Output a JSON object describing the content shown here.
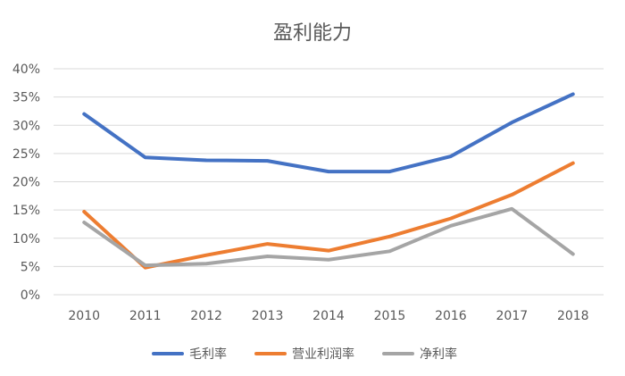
{
  "chart_data": {
    "type": "line",
    "title": "盈利能力",
    "categories": [
      "2010",
      "2011",
      "2012",
      "2013",
      "2014",
      "2015",
      "2016",
      "2017",
      "2018"
    ],
    "series": [
      {
        "name": "毛利率",
        "color": "#4472C4",
        "values": [
          32,
          24.3,
          23.8,
          23.7,
          21.8,
          21.8,
          24.5,
          30.5,
          35.5
        ]
      },
      {
        "name": "营业利润率",
        "color": "#ED7D31",
        "values": [
          14.7,
          4.8,
          7,
          9,
          7.8,
          10.3,
          13.5,
          17.7,
          23.3
        ]
      },
      {
        "name": "净利率",
        "color": "#A5A5A5",
        "values": [
          12.8,
          5.2,
          5.5,
          6.8,
          6.2,
          7.7,
          12.2,
          15.2,
          7.2
        ]
      }
    ],
    "y_ticks": [
      "0%",
      "5%",
      "10%",
      "15%",
      "20%",
      "25%",
      "30%",
      "35%",
      "40%"
    ],
    "ylim": [
      0,
      40
    ],
    "grid": true,
    "legend_position": "bottom"
  }
}
